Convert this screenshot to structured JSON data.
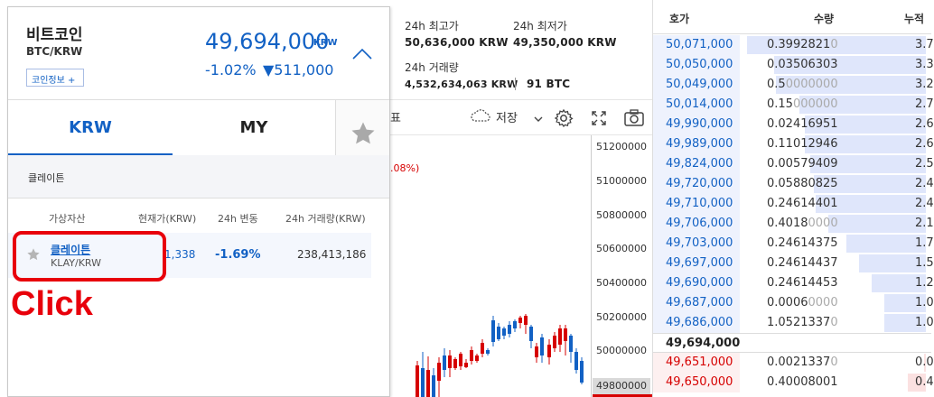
{
  "stats": {
    "high_label": "24h 최고가",
    "high_value": "50,636,000 KRW",
    "low_label": "24h 최저가",
    "low_value": "49,350,000 KRW",
    "volume_label": "24h 거래량",
    "volume_value": "4,532,634,063 KRW",
    "volume_btc": "91 BTC"
  },
  "chart_toolbar": {
    "partial_char": "표",
    "save_label": "저장",
    "icons": [
      "cloud-icon",
      "chevron-down-icon",
      "gear-icon",
      "expand-icon",
      "camera-icon"
    ]
  },
  "chart": {
    "pct_label": ".08%)",
    "y_ticks": [
      "51200000",
      "51000000",
      "50800000",
      "50600000",
      "50400000",
      "50200000",
      "50000000",
      "49800000"
    ]
  },
  "orderbook": {
    "headers": {
      "price": "호가",
      "qty": "수량",
      "acc": "누적"
    },
    "asks": [
      {
        "price": "50,071,000",
        "qty": "0.3992821",
        "qty_dim": "0",
        "acc": "3.7",
        "depth": 0.99
      },
      {
        "price": "50,050,000",
        "qty": "0.03506303",
        "qty_dim": "",
        "acc": "3.3",
        "depth": 0.84
      },
      {
        "price": "50,049,000",
        "qty": "0.5",
        "qty_dim": "0000000",
        "acc": "3.2",
        "depth": 0.83
      },
      {
        "price": "50,014,000",
        "qty": "0.15",
        "qty_dim": "000000",
        "acc": "2.7",
        "depth": 0.7
      },
      {
        "price": "49,990,000",
        "qty": "0.02416951",
        "qty_dim": "",
        "acc": "2.6",
        "depth": 0.67
      },
      {
        "price": "49,989,000",
        "qty": "0.11012946",
        "qty_dim": "",
        "acc": "2.6",
        "depth": 0.67
      },
      {
        "price": "49,824,000",
        "qty": "0.00579409",
        "qty_dim": "",
        "acc": "2.5",
        "depth": 0.64
      },
      {
        "price": "49,720,000",
        "qty": "0.05880825",
        "qty_dim": "",
        "acc": "2.4",
        "depth": 0.62
      },
      {
        "price": "49,710,000",
        "qty": "0.24614401",
        "qty_dim": "",
        "acc": "2.4",
        "depth": 0.61
      },
      {
        "price": "49,706,000",
        "qty": "0.4018",
        "qty_dim": "0000",
        "acc": "2.1",
        "depth": 0.54
      },
      {
        "price": "49,703,000",
        "qty": "0.24614375",
        "qty_dim": "",
        "acc": "1.7",
        "depth": 0.44
      },
      {
        "price": "49,697,000",
        "qty": "0.24614437",
        "qty_dim": "",
        "acc": "1.5",
        "depth": 0.37
      },
      {
        "price": "49,690,000",
        "qty": "0.24614453",
        "qty_dim": "",
        "acc": "1.2",
        "depth": 0.3
      },
      {
        "price": "49,687,000",
        "qty": "0.0006",
        "qty_dim": "0000",
        "acc": "1.0",
        "depth": 0.23
      },
      {
        "price": "49,686,000",
        "qty": "1.0521337",
        "qty_dim": "0",
        "acc": "1.0",
        "depth": 0.23
      }
    ],
    "current": {
      "price": "49,694,000"
    },
    "bids": [
      {
        "price": "49,651,000",
        "qty": "0.0021337",
        "qty_dim": "0",
        "acc": "0.0",
        "depth": 0.01
      },
      {
        "price": "49,650,000",
        "qty": "0.40008001",
        "qty_dim": "",
        "acc": "0.4",
        "depth": 0.1
      }
    ]
  },
  "coin": {
    "name": "비트코인",
    "pair": "BTC/KRW",
    "info_button": "코인정보 +",
    "price": "49,694,000",
    "unit": "KRW",
    "change_pct": "-1.02%",
    "change_amt": "▼511,000"
  },
  "market_tabs": {
    "krw": "KRW",
    "my": "MY"
  },
  "search": {
    "query": "클레이튼"
  },
  "table": {
    "headers": {
      "asset": "가상자산",
      "price": "현재가(KRW)",
      "change": "24h 변동",
      "volume": "24h 거래량(KRW)"
    },
    "rows": [
      {
        "name": "클레이튼",
        "pair": "KLAY/KRW",
        "price": "1,338",
        "change": "-1.69%",
        "volume": "238,413,186"
      }
    ]
  },
  "annotation": {
    "click_text": "Click",
    "color": "#e8000b"
  },
  "colors": {
    "accent": "#1261c4",
    "down": "#1261c4",
    "up": "#d60000"
  }
}
